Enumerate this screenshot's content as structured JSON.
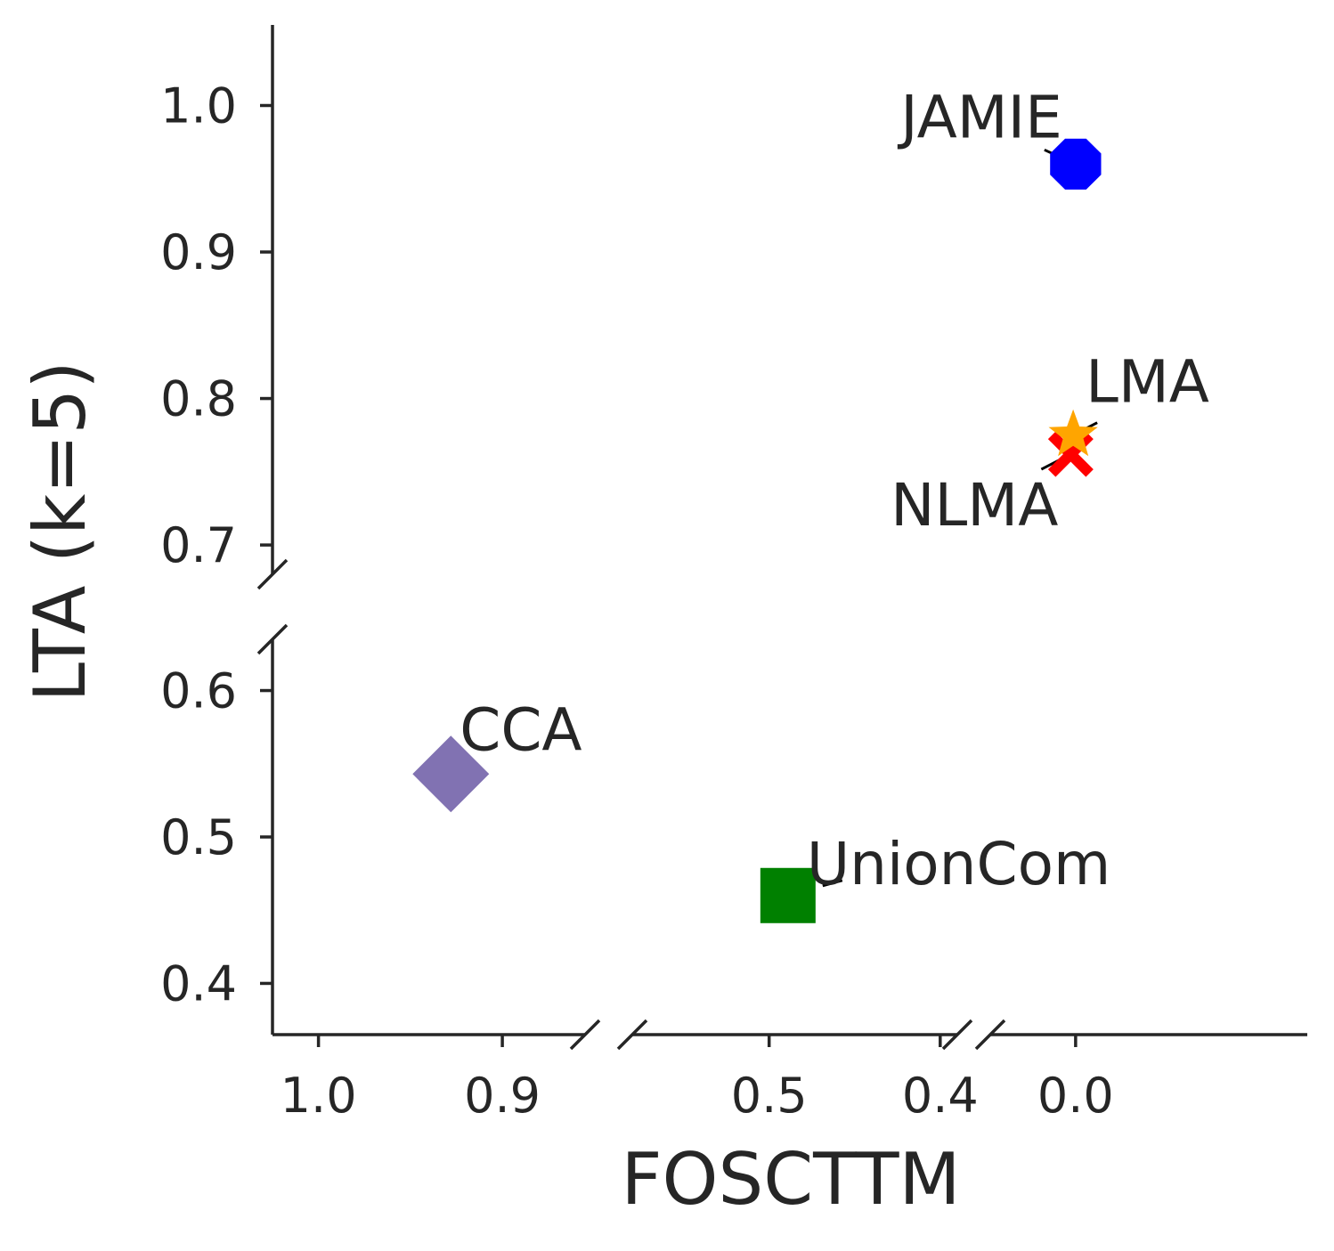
{
  "chart_data": {
    "type": "scatter",
    "title": "",
    "xlabel": "FOSCTTM",
    "ylabel": "LTA (k=5)",
    "x_axis_inverted": true,
    "x_segments": [
      {
        "range": [
          1.025,
          0.855
        ],
        "ticks": [
          1.0,
          0.9
        ],
        "tick_labels": [
          "1.0",
          "0.9"
        ]
      },
      {
        "range": [
          0.58,
          0.39
        ],
        "ticks": [
          0.5,
          0.4
        ],
        "tick_labels": [
          "0.5",
          "0.4"
        ]
      },
      {
        "range": [
          0.035,
          -0.095
        ],
        "ticks": [
          0.0
        ],
        "tick_labels": [
          "0.0"
        ]
      }
    ],
    "y_segments": [
      {
        "range": [
          0.68,
          1.055
        ],
        "ticks": [
          0.7,
          0.8,
          0.9,
          1.0
        ],
        "tick_labels": [
          "0.7",
          "0.8",
          "0.9",
          "1.0"
        ]
      },
      {
        "range": [
          0.365,
          0.635
        ],
        "ticks": [
          0.4,
          0.5,
          0.6
        ],
        "tick_labels": [
          "0.4",
          "0.5",
          "0.6"
        ]
      }
    ],
    "grid": false,
    "legend": "none",
    "points": [
      {
        "label": "JAMIE",
        "x": 0.0,
        "y": 0.96,
        "marker": "octagon",
        "color": "#0000ff"
      },
      {
        "label": "NLMA",
        "x": 0.002,
        "y": 0.762,
        "marker": "x",
        "color": "#ff0000"
      },
      {
        "label": "LMA",
        "x": 0.001,
        "y": 0.775,
        "marker": "star",
        "color": "#ffa500"
      },
      {
        "label": "CCA",
        "x": 0.928,
        "y": 0.543,
        "marker": "diamond",
        "color": "#8172b2"
      },
      {
        "label": "UnionCom",
        "x": 0.489,
        "y": 0.46,
        "marker": "square",
        "color": "#008000"
      }
    ]
  }
}
